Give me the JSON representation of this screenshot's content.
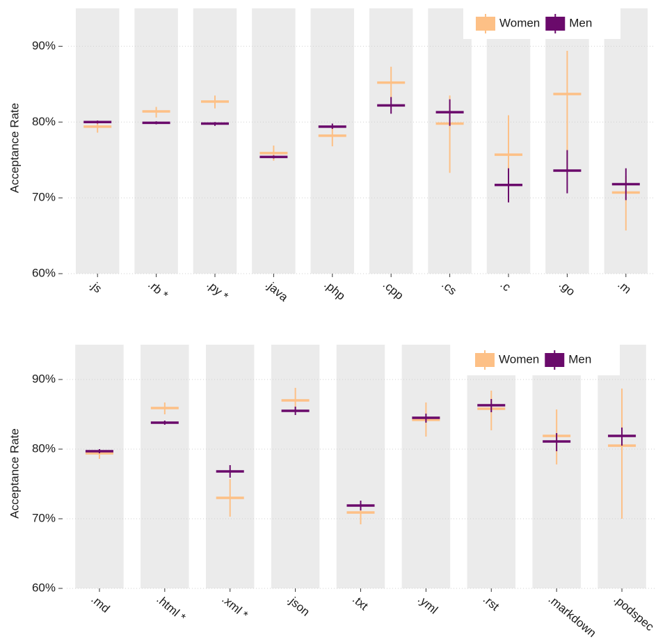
{
  "chart_data": [
    {
      "type": "errorbar",
      "ylabel": "Acceptance Rate",
      "categories": [
        ".js",
        ".rb *",
        ".py *",
        ".java",
        ".php",
        ".cpp",
        ".cs",
        ".c",
        ".go",
        ".m"
      ],
      "series": [
        {
          "name": "Women",
          "color": "#fdc086",
          "values": [
            79.4,
            81.4,
            82.7,
            75.9,
            78.2,
            85.2,
            79.8,
            75.7,
            83.7,
            70.7
          ],
          "lower": [
            78.6,
            80.6,
            81.8,
            74.9,
            76.8,
            83.2,
            73.3,
            70.0,
            73.1,
            65.7
          ],
          "upper": [
            79.8,
            82.0,
            83.5,
            76.9,
            79.3,
            87.3,
            83.5,
            80.9,
            89.4,
            72.9
          ]
        },
        {
          "name": "Men",
          "color": "#6a0a6b",
          "values": [
            80.0,
            79.9,
            79.8,
            75.4,
            79.4,
            82.2,
            81.3,
            71.7,
            73.6,
            71.8
          ],
          "lower": [
            79.8,
            79.7,
            79.5,
            75.2,
            79.1,
            81.1,
            79.5,
            69.4,
            70.6,
            69.7
          ],
          "upper": [
            80.2,
            80.1,
            80.0,
            75.6,
            79.8,
            83.3,
            83.0,
            73.9,
            76.3,
            73.9
          ]
        }
      ],
      "ylim": [
        60,
        95
      ],
      "yticks": [
        {
          "value": 60,
          "label": "60%"
        },
        {
          "value": 70,
          "label": "70%"
        },
        {
          "value": 80,
          "label": "80%"
        },
        {
          "value": 90,
          "label": "90%"
        }
      ],
      "grid": true,
      "legend": "top-right"
    },
    {
      "type": "errorbar",
      "ylabel": "Acceptance Rate",
      "categories": [
        ".md",
        ".html *",
        ".xml *",
        ".json",
        ".txt",
        ".yml",
        ".rst",
        ".markdown",
        ".podspec"
      ],
      "series": [
        {
          "name": "Women",
          "color": "#fdc086",
          "values": [
            79.4,
            85.9,
            73.0,
            87.0,
            70.9,
            84.2,
            85.8,
            81.9,
            80.5
          ],
          "lower": [
            78.6,
            85.0,
            70.3,
            85.3,
            69.2,
            81.8,
            82.7,
            77.8,
            70.0
          ],
          "upper": [
            79.9,
            86.7,
            75.7,
            88.8,
            72.3,
            86.7,
            88.4,
            85.7,
            88.7
          ]
        },
        {
          "name": "Men",
          "color": "#6a0a6b",
          "values": [
            79.7,
            83.8,
            76.8,
            85.5,
            71.9,
            84.5,
            86.3,
            81.1,
            81.9
          ],
          "lower": [
            79.4,
            83.5,
            75.9,
            84.9,
            71.2,
            83.8,
            85.3,
            79.7,
            80.5
          ],
          "upper": [
            80.0,
            84.1,
            77.7,
            86.1,
            72.6,
            85.1,
            87.2,
            82.3,
            83.1
          ]
        }
      ],
      "ylim": [
        60,
        95
      ],
      "yticks": [
        {
          "value": 60,
          "label": "60%"
        },
        {
          "value": 70,
          "label": "70%"
        },
        {
          "value": 80,
          "label": "80%"
        },
        {
          "value": 90,
          "label": "90%"
        }
      ],
      "grid": true,
      "legend": "top-right"
    }
  ]
}
